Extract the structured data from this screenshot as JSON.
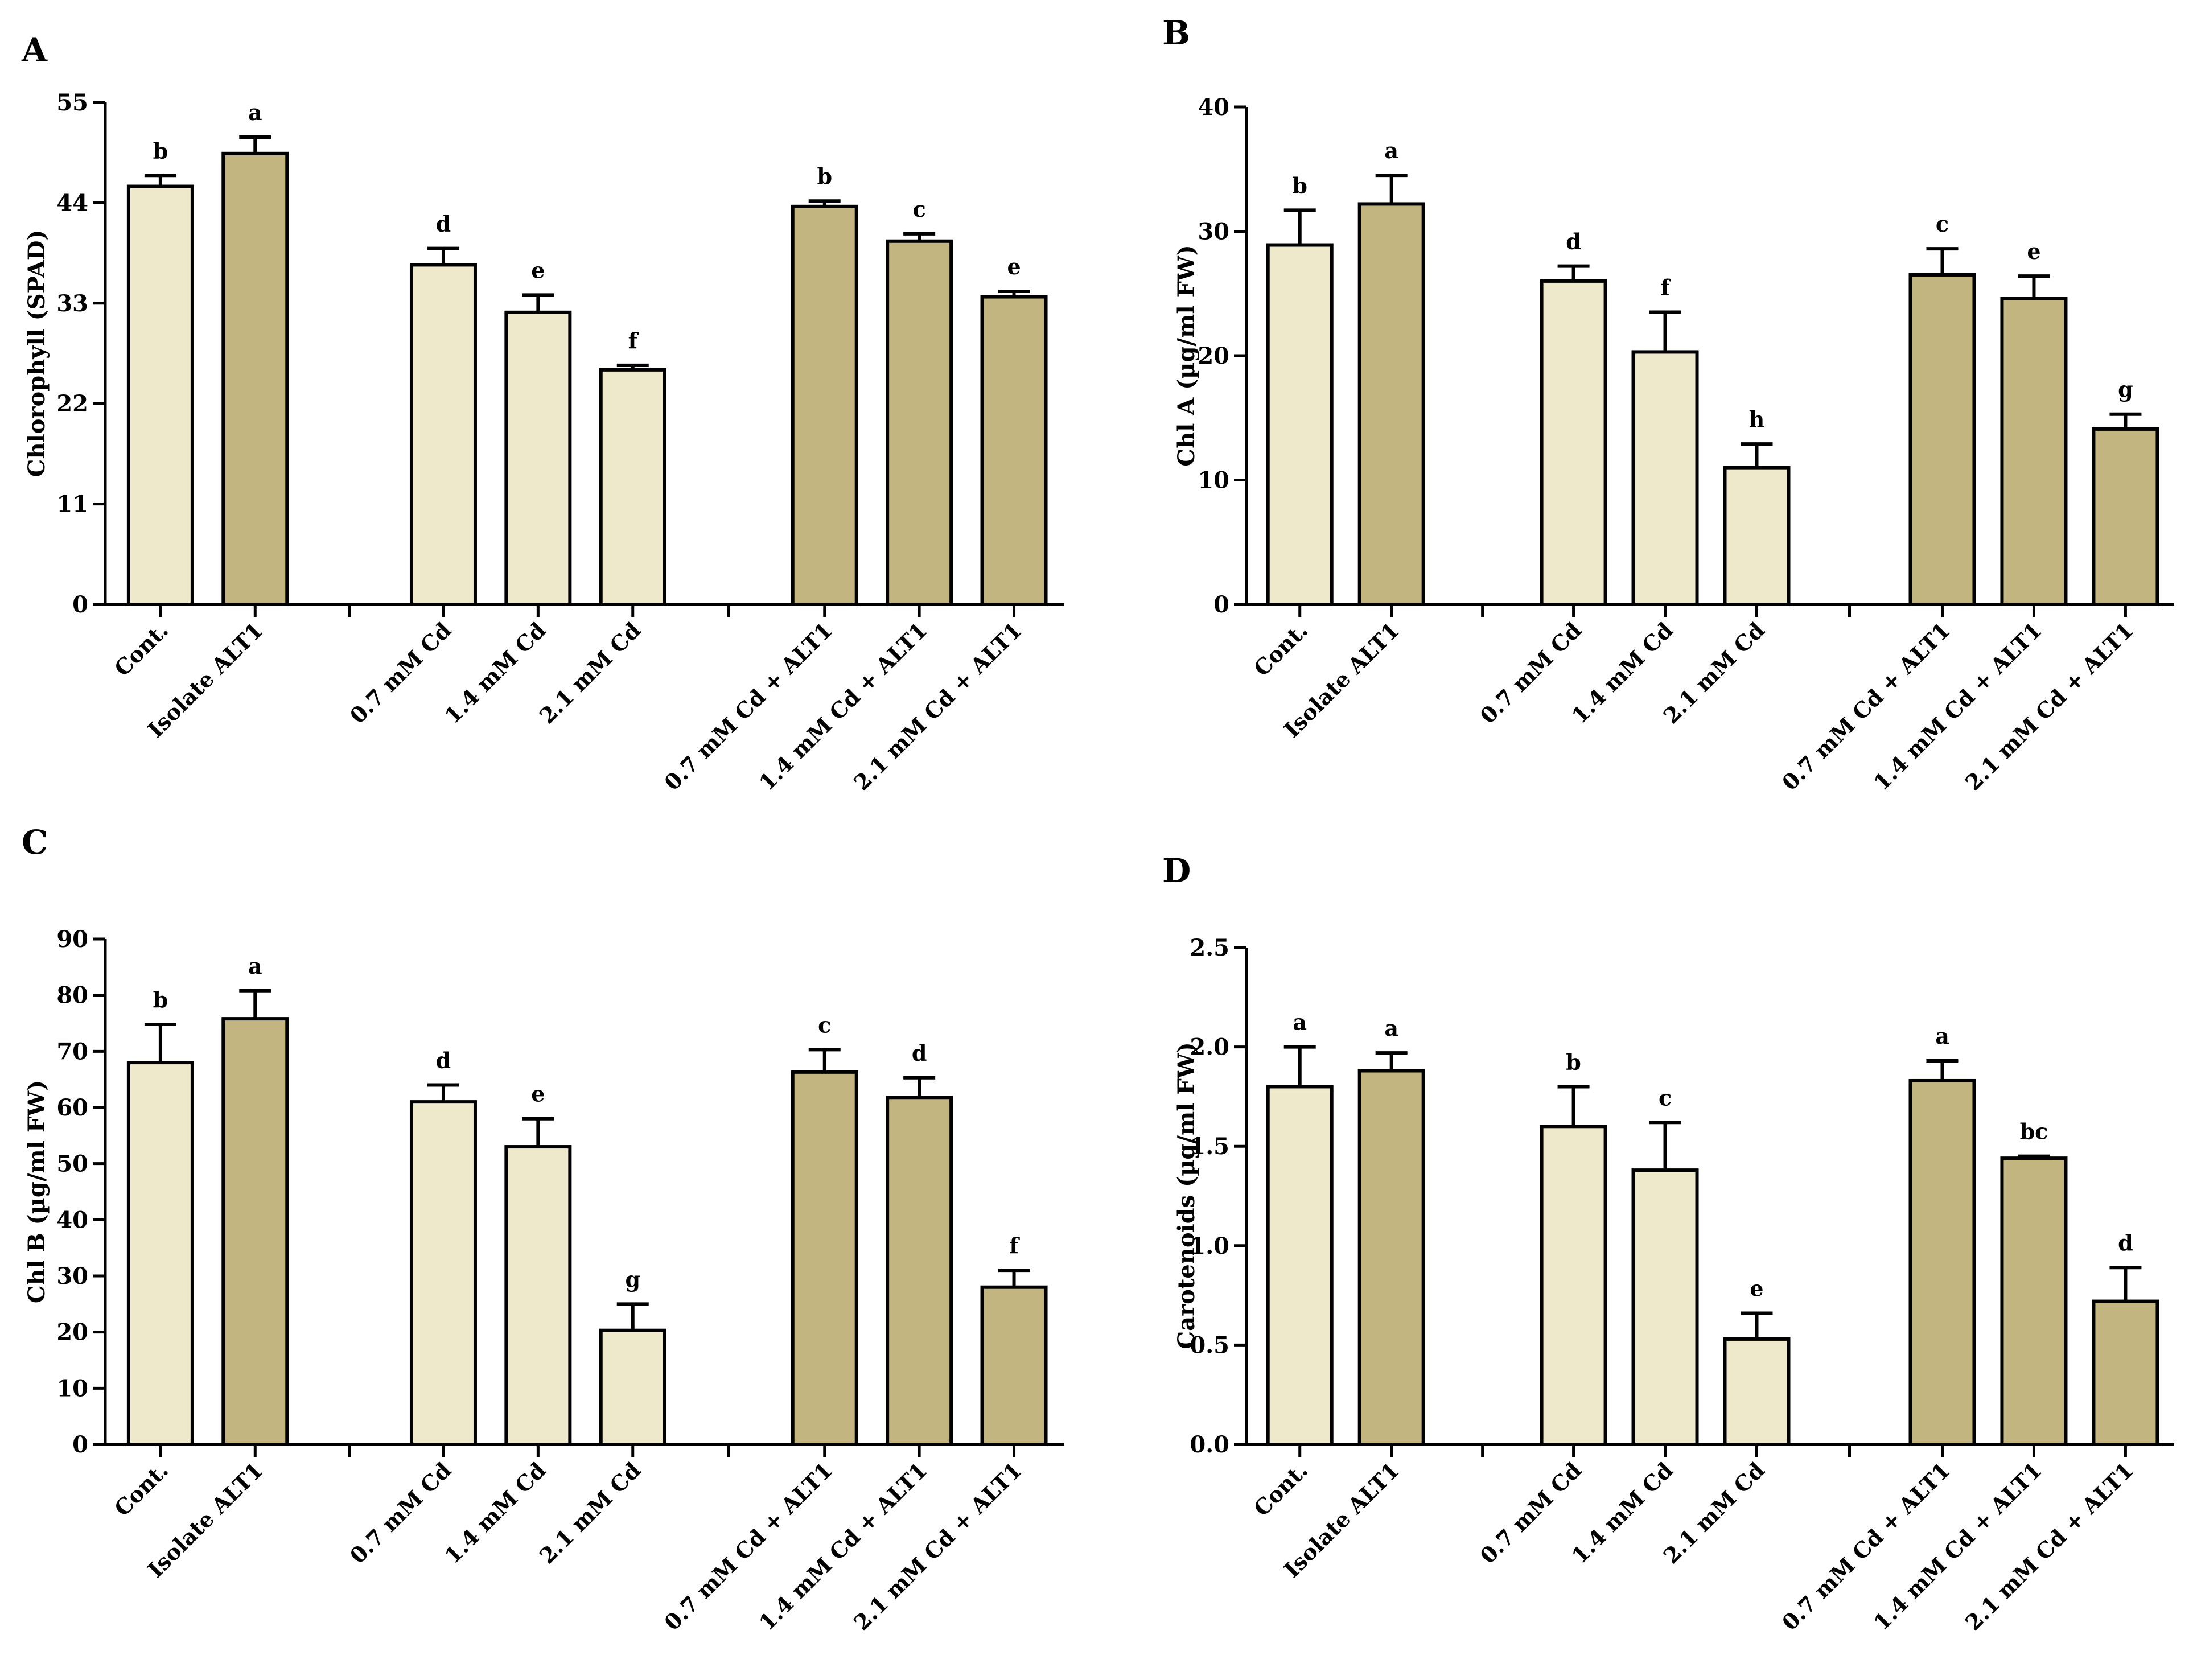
{
  "colors": {
    "light": "#efe9cc",
    "dark": "#c2b57f",
    "stroke": "#000000"
  },
  "chart_data": [
    {
      "panel": "A",
      "type": "bar",
      "ylabel": "Chlorophyll (SPAD)",
      "ylim": [
        0,
        55
      ],
      "yticks": [
        "0",
        "11",
        "22",
        "33",
        "44",
        "55"
      ],
      "categories": [
        "Cont.",
        "Isolate ALT1",
        "0.7 mM Cd",
        "1.4 mM Cd",
        "2.1 mM Cd",
        "0.7 mM Cd + ALT1",
        "1.4 mM Cd + ALT1",
        "2.1 mM Cd + ALT1"
      ],
      "values": [
        45.8,
        49.4,
        37.2,
        32.0,
        25.7,
        43.6,
        39.8,
        33.7
      ],
      "errors": [
        1.2,
        1.8,
        1.8,
        1.9,
        0.5,
        0.6,
        0.8,
        0.6
      ],
      "letters": [
        "b",
        "a",
        "d",
        "e",
        "f",
        "b",
        "c",
        "e"
      ],
      "shade": [
        "light",
        "dark",
        "light",
        "light",
        "light",
        "dark",
        "dark",
        "dark"
      ]
    },
    {
      "panel": "B",
      "type": "bar",
      "ylabel": "Chl A (µg/ml FW)",
      "ylim": [
        0,
        40
      ],
      "yticks": [
        "0",
        "10",
        "20",
        "30",
        "40"
      ],
      "categories": [
        "Cont.",
        "Isolate ALT1",
        "0.7 mM Cd",
        "1.4 mM Cd",
        "2.1 mM Cd",
        "0.7 mM Cd + ALT1",
        "1.4 mM Cd + ALT1",
        "2.1 mM Cd + ALT1"
      ],
      "values": [
        28.9,
        32.2,
        26.0,
        20.3,
        11.0,
        26.5,
        24.6,
        14.1
      ],
      "errors": [
        2.8,
        2.3,
        1.2,
        3.2,
        1.9,
        2.1,
        1.8,
        1.2
      ],
      "letters": [
        "b",
        "a",
        "d",
        "f",
        "h",
        "c",
        "e",
        "g"
      ],
      "shade": [
        "light",
        "dark",
        "light",
        "light",
        "light",
        "dark",
        "dark",
        "dark"
      ]
    },
    {
      "panel": "C",
      "type": "bar",
      "ylabel": "Chl B (µg/ml FW)",
      "ylim": [
        0,
        90
      ],
      "yticks": [
        "0",
        "10",
        "20",
        "30",
        "40",
        "50",
        "60",
        "70",
        "80",
        "90"
      ],
      "categories": [
        "Cont.",
        "Isolate ALT1",
        "0.7 mM Cd",
        "1.4 mM Cd",
        "2.1 mM Cd",
        "0.7 mM Cd + ALT1",
        "1.4 mM Cd + ALT1",
        "2.1 mM Cd + ALT1"
      ],
      "values": [
        68.0,
        75.8,
        61.0,
        53.0,
        20.3,
        66.3,
        61.8,
        28.0
      ],
      "errors": [
        6.8,
        5.0,
        3.0,
        5.0,
        4.7,
        4.0,
        3.5,
        3.0
      ],
      "letters": [
        "b",
        "a",
        "d",
        "e",
        "g",
        "c",
        "d",
        "f"
      ],
      "shade": [
        "light",
        "dark",
        "light",
        "light",
        "light",
        "dark",
        "dark",
        "dark"
      ]
    },
    {
      "panel": "D",
      "type": "bar",
      "ylabel": "Carotenoids (µg/ml FW)",
      "ylim": [
        0,
        2.5
      ],
      "yticks": [
        "0.0",
        "0.5",
        "1.0",
        "1.5",
        "2.0",
        "2.5"
      ],
      "categories": [
        "Cont.",
        "Isolate ALT1",
        "0.7 mM Cd",
        "1.4 mM Cd",
        "2.1 mM Cd",
        "0.7 mM Cd + ALT1",
        "1.4 mM Cd + ALT1",
        "2.1 mM Cd + ALT1"
      ],
      "values": [
        1.8,
        1.88,
        1.6,
        1.38,
        0.53,
        1.83,
        1.44,
        0.72
      ],
      "errors": [
        0.2,
        0.09,
        0.2,
        0.24,
        0.13,
        0.1,
        0.01,
        0.17
      ],
      "letters": [
        "a",
        "a",
        "b",
        "c",
        "e",
        "a",
        "bc",
        "d"
      ],
      "shade": [
        "light",
        "dark",
        "light",
        "light",
        "light",
        "dark",
        "dark",
        "dark"
      ]
    }
  ]
}
